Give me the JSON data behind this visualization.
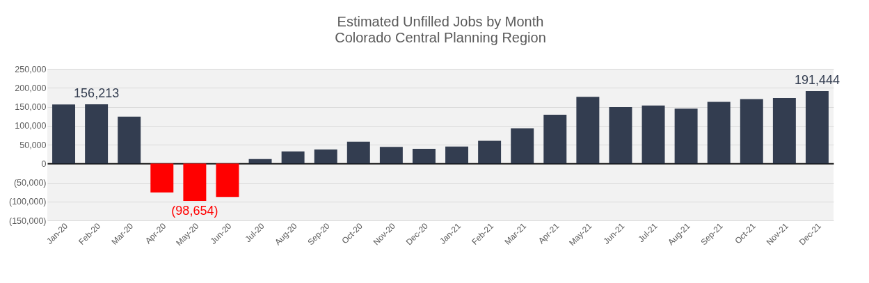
{
  "chart_data": {
    "type": "bar",
    "title": "Estimated Unfilled Jobs by Month",
    "subtitle": "Colorado Central Planning Region",
    "categories": [
      "Jan-20",
      "Feb-20",
      "Mar-20",
      "Apr-20",
      "May-20",
      "Jun-20",
      "Jul-20",
      "Aug-20",
      "Sep-20",
      "Oct-20",
      "Nov-20",
      "Dec-20",
      "Jan-21",
      "Feb-21",
      "Mar-21",
      "Apr-21",
      "May-21",
      "Jun-21",
      "Jul-21",
      "Aug-21",
      "Sep-21",
      "Oct-21",
      "Nov-21",
      "Dec-21"
    ],
    "values": [
      156000,
      156213,
      124000,
      -76000,
      -98654,
      -88000,
      12000,
      32000,
      37000,
      58000,
      44000,
      39000,
      45000,
      60000,
      93000,
      129000,
      176000,
      149000,
      153000,
      145000,
      163000,
      170000,
      173000,
      191444
    ],
    "colors": [
      "#333d50",
      "#333d50",
      "#333d50",
      "#ff0000",
      "#ff0000",
      "#ff0000",
      "#333d50",
      "#333d50",
      "#333d50",
      "#333d50",
      "#333d50",
      "#333d50",
      "#333d50",
      "#333d50",
      "#333d50",
      "#333d50",
      "#333d50",
      "#333d50",
      "#333d50",
      "#333d50",
      "#333d50",
      "#333d50",
      "#333d50",
      "#333d50"
    ],
    "value_labels": [
      null,
      "156,213",
      null,
      null,
      "(98,654)",
      null,
      null,
      null,
      null,
      null,
      null,
      null,
      null,
      null,
      null,
      null,
      null,
      null,
      null,
      null,
      null,
      null,
      null,
      "191,444"
    ],
    "ylim": [
      -150000,
      250000
    ],
    "yticks": [
      {
        "value": -150000,
        "label": "(150,000)"
      },
      {
        "value": -100000,
        "label": "(100,000)"
      },
      {
        "value": -50000,
        "label": "(50,000)"
      },
      0,
      {
        "value": 50000,
        "label": "50,000"
      },
      {
        "value": 100000,
        "label": "100,000"
      },
      {
        "value": 150000,
        "label": "150,000"
      },
      {
        "value": 200000,
        "label": "200,000"
      },
      {
        "value": 250000,
        "label": "250,000"
      }
    ],
    "grid": "y"
  }
}
